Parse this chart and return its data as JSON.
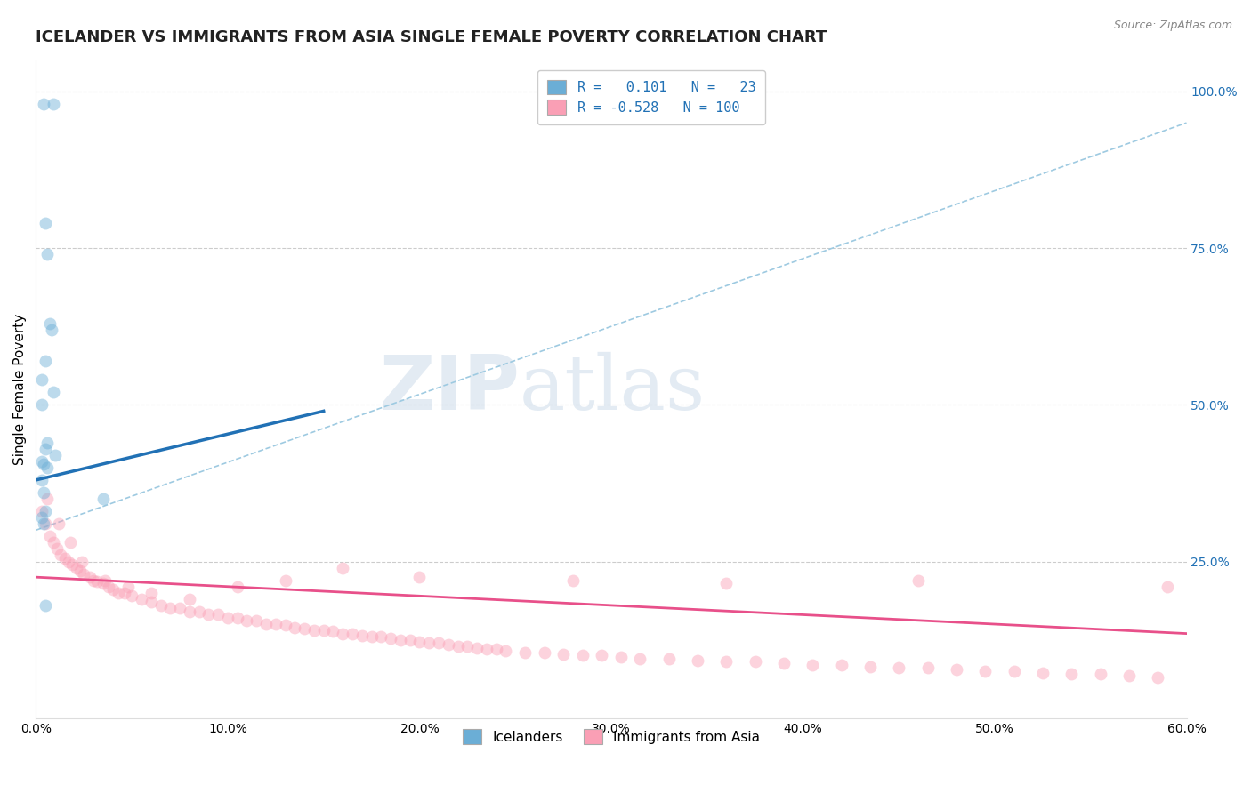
{
  "title": "ICELANDER VS IMMIGRANTS FROM ASIA SINGLE FEMALE POVERTY CORRELATION CHART",
  "source": "Source: ZipAtlas.com",
  "ylabel": "Single Female Poverty",
  "icelander_color": "#6baed6",
  "immigrant_color": "#fa9fb5",
  "icelander_line_color": "#2171b5",
  "immigrant_line_color": "#e8508a",
  "trend_line_color": "#9ecae1",
  "xlim": [
    0.0,
    60.0
  ],
  "ylim": [
    0.0,
    105.0
  ],
  "xtick_vals": [
    0.0,
    10.0,
    20.0,
    30.0,
    40.0,
    50.0,
    60.0
  ],
  "ytick_positions": [
    25.0,
    50.0,
    75.0,
    100.0
  ],
  "ytick_labels": [
    "25.0%",
    "50.0%",
    "75.0%",
    "100.0%"
  ],
  "grid_color": "#cccccc",
  "background_color": "#ffffff",
  "scatter_size": 100,
  "scatter_alpha": 0.45,
  "title_fontsize": 13,
  "axis_label_fontsize": 11,
  "tick_fontsize": 10,
  "blue_scatter_x": [
    0.4,
    0.9,
    0.5,
    0.6,
    0.7,
    0.8,
    0.5,
    0.3,
    0.9,
    0.3,
    0.6,
    0.5,
    1.0,
    0.3,
    0.4,
    0.6,
    0.3,
    0.4,
    3.5,
    0.5,
    0.3,
    0.4,
    0.5
  ],
  "blue_scatter_y": [
    98.0,
    98.0,
    79.0,
    74.0,
    63.0,
    62.0,
    57.0,
    54.0,
    52.0,
    50.0,
    44.0,
    43.0,
    42.0,
    41.0,
    40.5,
    40.0,
    38.0,
    36.0,
    35.0,
    33.0,
    32.0,
    31.0,
    18.0
  ],
  "pink_scatter_x": [
    0.3,
    0.5,
    0.7,
    0.9,
    1.1,
    1.3,
    1.5,
    1.7,
    1.9,
    2.1,
    2.3,
    2.5,
    2.8,
    3.0,
    3.2,
    3.5,
    3.8,
    4.0,
    4.3,
    4.6,
    5.0,
    5.5,
    6.0,
    6.5,
    7.0,
    7.5,
    8.0,
    8.5,
    9.0,
    9.5,
    10.0,
    10.5,
    11.0,
    11.5,
    12.0,
    12.5,
    13.0,
    13.5,
    14.0,
    14.5,
    15.0,
    15.5,
    16.0,
    16.5,
    17.0,
    17.5,
    18.0,
    18.5,
    19.0,
    19.5,
    20.0,
    20.5,
    21.0,
    21.5,
    22.0,
    22.5,
    23.0,
    23.5,
    24.0,
    24.5,
    25.5,
    26.5,
    27.5,
    28.5,
    29.5,
    30.5,
    31.5,
    33.0,
    34.5,
    36.0,
    37.5,
    39.0,
    40.5,
    42.0,
    43.5,
    45.0,
    46.5,
    48.0,
    49.5,
    51.0,
    52.5,
    54.0,
    55.5,
    57.0,
    58.5,
    0.6,
    1.2,
    1.8,
    2.4,
    3.6,
    4.8,
    6.0,
    8.0,
    10.5,
    13.0,
    16.0,
    20.0,
    28.0,
    36.0,
    46.0,
    59.0
  ],
  "pink_scatter_y": [
    33.0,
    31.0,
    29.0,
    28.0,
    27.0,
    26.0,
    25.5,
    25.0,
    24.5,
    24.0,
    23.5,
    23.0,
    22.5,
    22.0,
    21.8,
    21.5,
    21.0,
    20.5,
    20.0,
    20.0,
    19.5,
    19.0,
    18.5,
    18.0,
    17.5,
    17.5,
    17.0,
    17.0,
    16.5,
    16.5,
    16.0,
    16.0,
    15.5,
    15.5,
    15.0,
    15.0,
    14.8,
    14.5,
    14.3,
    14.0,
    14.0,
    13.8,
    13.5,
    13.5,
    13.2,
    13.0,
    13.0,
    12.8,
    12.5,
    12.5,
    12.2,
    12.0,
    12.0,
    11.8,
    11.5,
    11.5,
    11.2,
    11.0,
    11.0,
    10.8,
    10.5,
    10.5,
    10.2,
    10.0,
    10.0,
    9.8,
    9.5,
    9.5,
    9.2,
    9.0,
    9.0,
    8.8,
    8.5,
    8.5,
    8.2,
    8.0,
    8.0,
    7.8,
    7.5,
    7.5,
    7.2,
    7.0,
    7.0,
    6.8,
    6.5,
    35.0,
    31.0,
    28.0,
    25.0,
    22.0,
    21.0,
    20.0,
    19.0,
    21.0,
    22.0,
    24.0,
    22.5,
    22.0,
    21.5,
    22.0,
    21.0
  ],
  "blue_line_x0": 0.0,
  "blue_line_x1": 15.0,
  "blue_line_y0": 38.0,
  "blue_line_y1": 49.0,
  "pink_line_x0": 0.0,
  "pink_line_x1": 60.0,
  "pink_line_y0": 22.5,
  "pink_line_y1": 13.5,
  "gray_line_x0": 0.0,
  "gray_line_x1": 60.0,
  "gray_line_y0": 30.0,
  "gray_line_y1": 95.0
}
